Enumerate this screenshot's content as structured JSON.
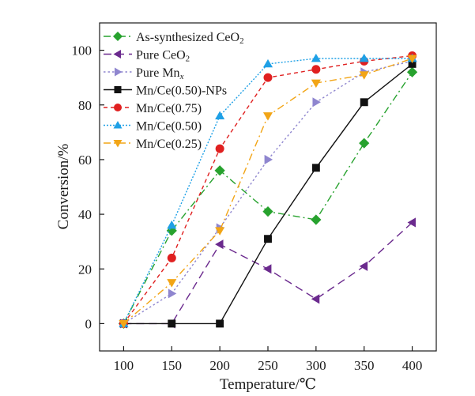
{
  "chart_data": {
    "type": "line",
    "title": "",
    "xlabel": "Temperature/℃",
    "ylabel": "Conversion/%",
    "x": [
      100,
      150,
      200,
      250,
      300,
      350,
      400
    ],
    "xlim": [
      75,
      425
    ],
    "ylim": [
      -10,
      110
    ],
    "xticks": [
      100,
      150,
      200,
      250,
      300,
      350,
      400
    ],
    "yticks": [
      0,
      20,
      40,
      60,
      80,
      100
    ],
    "grid": false,
    "legend_position": "top-left",
    "series": [
      {
        "name": "As-synthesized CeO",
        "name_sub": "2",
        "name_sub_style": "sub",
        "marker": "diamond",
        "color": "#27a22e",
        "dash": "dashdot",
        "values": [
          0,
          34,
          56,
          41,
          38,
          66,
          92
        ]
      },
      {
        "name": "Pure CeO",
        "name_sub": "2",
        "name_sub_style": "sub",
        "marker": "triangle-left",
        "color": "#6b2a8e",
        "dash": "dash",
        "values": [
          0,
          0,
          29,
          20,
          9,
          21,
          37
        ]
      },
      {
        "name": "Pure Mn",
        "name_sub": "x",
        "name_sub_style": "sub-italic",
        "marker": "triangle-right",
        "color": "#8f86cf",
        "dash": "dot",
        "values": [
          0,
          11,
          35,
          60,
          81,
          92,
          96
        ]
      },
      {
        "name": "Mn/Ce(0.50)-NPs",
        "marker": "square",
        "color": "#111111",
        "dash": "solid",
        "values": [
          0,
          0,
          0,
          31,
          57,
          81,
          95
        ]
      },
      {
        "name": "Mn/Ce(0.75)",
        "marker": "circle",
        "color": "#e02020",
        "dash": "dash-short",
        "values": [
          0,
          24,
          64,
          90,
          93,
          96,
          98
        ]
      },
      {
        "name": "Mn/Ce(0.50)",
        "marker": "triangle-up",
        "color": "#1ea0e6",
        "dash": "dot-dense",
        "values": [
          0,
          36,
          76,
          95,
          97,
          97,
          97
        ]
      },
      {
        "name": "Mn/Ce(0.25)",
        "marker": "triangle-down",
        "color": "#f2a516",
        "dash": "dashdot",
        "values": [
          0,
          15,
          34,
          76,
          88,
          91,
          97
        ]
      }
    ]
  }
}
